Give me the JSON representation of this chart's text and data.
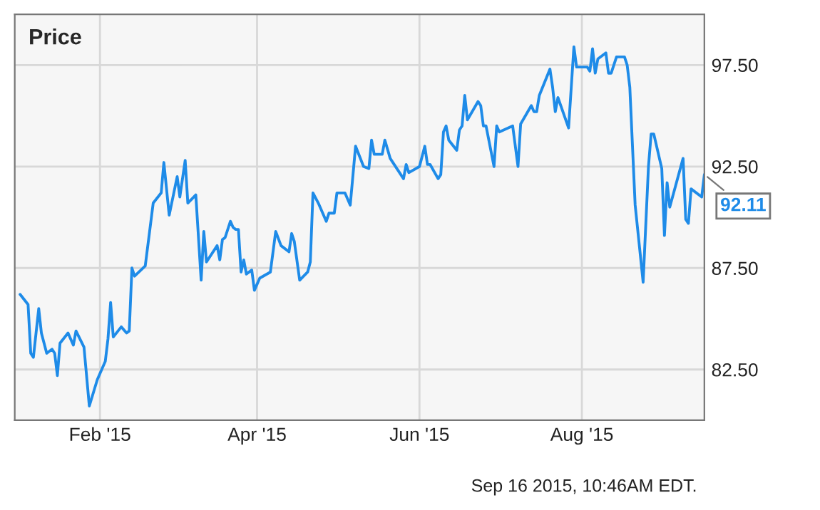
{
  "chart_data": {
    "type": "line",
    "title": "Price",
    "x": [
      "2015-01-02",
      "2015-01-05",
      "2015-01-06",
      "2015-01-07",
      "2015-01-09",
      "2015-01-10",
      "2015-01-12",
      "2015-01-14",
      "2015-01-15",
      "2015-01-16",
      "2015-01-17",
      "2015-01-20",
      "2015-01-22",
      "2015-01-23",
      "2015-01-26",
      "2015-01-28",
      "2015-01-31",
      "2015-02-03",
      "2015-02-04",
      "2015-02-05",
      "2015-02-06",
      "2015-02-09",
      "2015-02-11",
      "2015-02-12",
      "2015-02-13",
      "2015-02-14",
      "2015-02-18",
      "2015-02-21",
      "2015-02-24",
      "2015-02-25",
      "2015-02-27",
      "2015-03-02",
      "2015-03-03",
      "2015-03-05",
      "2015-03-06",
      "2015-03-09",
      "2015-03-11",
      "2015-03-12",
      "2015-03-13",
      "2015-03-17",
      "2015-03-18",
      "2015-03-19",
      "2015-03-20",
      "2015-03-22",
      "2015-03-23",
      "2015-03-24",
      "2015-03-25",
      "2015-03-26",
      "2015-03-27",
      "2015-03-28",
      "2015-03-30",
      "2015-03-31",
      "2015-04-02",
      "2015-04-06",
      "2015-04-08",
      "2015-04-10",
      "2015-04-13",
      "2015-04-14",
      "2015-04-15",
      "2015-04-17",
      "2015-04-20",
      "2015-04-21",
      "2015-04-22",
      "2015-04-24",
      "2015-04-27",
      "2015-04-28",
      "2015-04-30",
      "2015-05-01",
      "2015-05-04",
      "2015-05-06",
      "2015-05-08",
      "2015-05-11",
      "2015-05-13",
      "2015-05-14",
      "2015-05-15",
      "2015-05-18",
      "2015-05-19",
      "2015-05-21",
      "2015-05-26",
      "2015-05-27",
      "2015-05-28",
      "2015-06-01",
      "2015-06-03",
      "2015-06-04",
      "2015-06-05",
      "2015-06-08",
      "2015-06-09",
      "2015-06-10",
      "2015-06-11",
      "2015-06-12",
      "2015-06-15",
      "2015-06-16",
      "2015-06-17",
      "2015-06-18",
      "2015-06-19",
      "2015-06-23",
      "2015-06-24",
      "2015-06-25",
      "2015-06-26",
      "2015-06-29",
      "2015-06-30",
      "2015-07-01",
      "2015-07-06",
      "2015-07-08",
      "2015-07-09",
      "2015-07-13",
      "2015-07-14",
      "2015-07-15",
      "2015-07-16",
      "2015-07-20",
      "2015-07-21",
      "2015-07-22",
      "2015-07-23",
      "2015-07-27",
      "2015-07-29",
      "2015-07-30",
      "2015-08-03",
      "2015-08-04",
      "2015-08-05",
      "2015-08-06",
      "2015-08-07",
      "2015-08-10",
      "2015-08-11",
      "2015-08-12",
      "2015-08-14",
      "2015-08-17",
      "2015-08-18",
      "2015-08-19",
      "2015-08-21",
      "2015-08-24",
      "2015-08-26",
      "2015-08-27",
      "2015-08-28",
      "2015-08-31",
      "2015-09-01",
      "2015-09-02",
      "2015-09-03",
      "2015-09-08",
      "2015-09-09",
      "2015-09-10",
      "2015-09-11",
      "2015-09-15",
      "2015-09-16"
    ],
    "series": [
      {
        "color": "#1e8be8",
        "values": [
          86.2,
          85.7,
          83.3,
          83.1,
          85.5,
          84.3,
          83.3,
          83.5,
          83.3,
          82.2,
          83.8,
          84.3,
          83.7,
          84.4,
          83.6,
          80.7,
          82.0,
          82.9,
          84.0,
          85.8,
          84.1,
          84.6,
          84.3,
          84.4,
          87.5,
          87.1,
          87.6,
          90.7,
          91.2,
          92.7,
          90.1,
          92.0,
          91.0,
          92.8,
          90.7,
          91.1,
          86.9,
          89.3,
          87.8,
          88.6,
          87.9,
          88.9,
          89.0,
          89.8,
          89.5,
          89.4,
          89.4,
          87.3,
          87.9,
          87.2,
          87.4,
          86.4,
          87.0,
          87.3,
          89.3,
          88.6,
          88.3,
          89.2,
          88.8,
          86.9,
          87.3,
          87.8,
          91.2,
          90.7,
          89.8,
          90.2,
          90.2,
          91.2,
          91.2,
          90.6,
          93.5,
          92.5,
          92.4,
          93.8,
          93.1,
          93.1,
          93.8,
          92.9,
          91.9,
          92.6,
          92.2,
          92.5,
          93.5,
          92.6,
          92.6,
          91.9,
          92.1,
          94.2,
          94.5,
          93.8,
          93.3,
          94.3,
          94.5,
          96.0,
          94.8,
          95.7,
          95.5,
          94.5,
          94.5,
          92.5,
          94.5,
          94.2,
          94.5,
          92.5,
          94.6,
          95.5,
          95.2,
          95.2,
          96.0,
          97.3,
          96.4,
          95.2,
          95.9,
          94.4,
          98.4,
          97.4,
          97.4,
          97.2,
          98.3,
          97.1,
          97.8,
          98.1,
          97.1,
          97.1,
          97.9,
          97.9,
          97.5,
          96.4,
          90.6,
          86.8,
          92.5,
          94.1,
          94.1,
          92.4,
          89.1,
          91.7,
          90.5,
          92.9,
          89.9,
          89.7,
          91.4,
          91.0,
          92.11
        ]
      }
    ],
    "xlim": [
      "2014-12-31",
      "2015-09-16"
    ],
    "xticks": [
      {
        "value": "2015-02-01",
        "label": "Feb '15"
      },
      {
        "value": "2015-04-01",
        "label": "Apr '15"
      },
      {
        "value": "2015-06-01",
        "label": "Jun '15"
      },
      {
        "value": "2015-08-01",
        "label": "Aug '15"
      }
    ],
    "ylim": [
      80,
      100
    ],
    "yticks": [
      {
        "value": 82.5,
        "label": "82.50"
      },
      {
        "value": 87.5,
        "label": "87.50"
      },
      {
        "value": 92.5,
        "label": "92.50"
      },
      {
        "value": 97.5,
        "label": "97.50"
      }
    ],
    "grid": true,
    "annotations": [
      {
        "text": "92.11",
        "x": "2015-09-16",
        "y": 92.11
      },
      "Sep 16 2015, 10:46AM EDT."
    ]
  }
}
